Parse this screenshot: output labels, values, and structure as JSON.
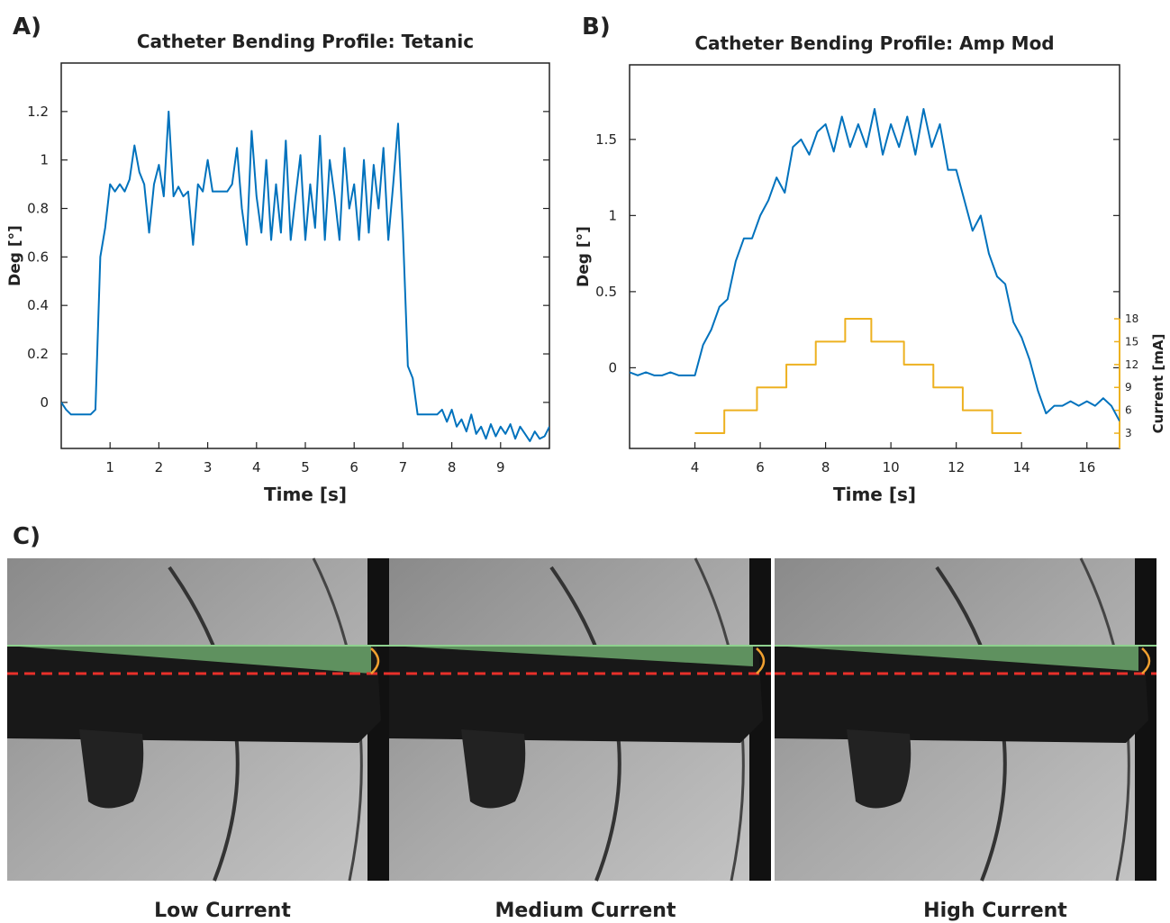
{
  "panel_labels": [
    "A)",
    "B)",
    "C)"
  ],
  "chart_data": [
    {
      "type": "line",
      "title": "Catheter Bending Profile: Tetanic",
      "xlabel": "Time [s]",
      "ylabel": "Deg [°]",
      "xlim": [
        0,
        10
      ],
      "ylim": [
        -0.19,
        1.4
      ],
      "xticks": [
        1,
        2,
        3,
        4,
        5,
        6,
        7,
        8,
        9
      ],
      "yticks": [
        0,
        0.2,
        0.4,
        0.6,
        0.8,
        1,
        1.2
      ],
      "x": [
        0,
        0.1,
        0.2,
        0.3,
        0.4,
        0.5,
        0.6,
        0.7,
        0.8,
        0.9,
        1,
        1.1,
        1.2,
        1.3,
        1.4,
        1.5,
        1.6,
        1.7,
        1.8,
        1.9,
        2,
        2.1,
        2.2,
        2.3,
        2.4,
        2.5,
        2.6,
        2.7,
        2.8,
        2.9,
        3,
        3.1,
        3.2,
        3.3,
        3.4,
        3.5,
        3.6,
        3.7,
        3.8,
        3.9,
        4,
        4.1,
        4.2,
        4.3,
        4.4,
        4.5,
        4.6,
        4.7,
        4.8,
        4.9,
        5,
        5.1,
        5.2,
        5.3,
        5.4,
        5.5,
        5.6,
        5.7,
        5.8,
        5.9,
        6,
        6.1,
        6.2,
        6.3,
        6.4,
        6.5,
        6.6,
        6.7,
        6.8,
        6.9,
        7,
        7.1,
        7.2,
        7.3,
        7.4,
        7.5,
        7.6,
        7.7,
        7.8,
        7.9,
        8,
        8.1,
        8.2,
        8.3,
        8.4,
        8.5,
        8.6,
        8.7,
        8.8,
        8.9,
        9,
        9.1,
        9.2,
        9.3,
        9.4,
        9.5,
        9.6,
        9.7,
        9.8,
        9.9,
        10
      ],
      "series": [
        {
          "color": "#0072BD",
          "values": [
            0,
            -0.03,
            -0.05,
            -0.05,
            -0.05,
            -0.05,
            -0.05,
            -0.03,
            0.6,
            0.72,
            0.9,
            0.87,
            0.9,
            0.87,
            0.92,
            1.06,
            0.95,
            0.9,
            0.7,
            0.9,
            0.98,
            0.85,
            1.2,
            0.85,
            0.89,
            0.85,
            0.87,
            0.65,
            0.9,
            0.87,
            1.0,
            0.87,
            0.87,
            0.87,
            0.87,
            0.9,
            1.05,
            0.8,
            0.65,
            1.12,
            0.85,
            0.7,
            1.0,
            0.67,
            0.9,
            0.7,
            1.08,
            0.67,
            0.85,
            1.02,
            0.67,
            0.9,
            0.72,
            1.1,
            0.67,
            1.0,
            0.85,
            0.67,
            1.05,
            0.8,
            0.9,
            0.67,
            1.0,
            0.7,
            0.98,
            0.8,
            1.05,
            0.67,
            0.9,
            1.15,
            0.7,
            0.15,
            0.1,
            -0.05,
            -0.05,
            -0.05,
            -0.05,
            -0.05,
            -0.03,
            -0.08,
            -0.03,
            -0.1,
            -0.07,
            -0.12,
            -0.05,
            -0.13,
            -0.1,
            -0.15,
            -0.09,
            -0.14,
            -0.1,
            -0.13,
            -0.09,
            -0.15,
            -0.1,
            -0.13,
            -0.16,
            -0.12,
            -0.15,
            -0.14,
            -0.1
          ]
        }
      ]
    },
    {
      "type": "line",
      "title": "Catheter Bending Profile: Amp Mod",
      "xlabel": "Time [s]",
      "ylabel": "Deg [°]",
      "y2label": "Current [mA]",
      "xlim": [
        2,
        17
      ],
      "ylim": [
        -0.53,
        1.99
      ],
      "y2lim": [
        1,
        51.3
      ],
      "xticks": [
        4,
        6,
        8,
        10,
        12,
        14,
        16
      ],
      "yticks": [
        0,
        0.5,
        1,
        1.5
      ],
      "y2ticks": [
        3,
        6,
        9,
        12,
        15,
        18
      ],
      "y2color": "#EDB120",
      "x": [
        2,
        2.25,
        2.5,
        2.75,
        3,
        3.25,
        3.5,
        3.75,
        4,
        4.25,
        4.5,
        4.75,
        5,
        5.25,
        5.5,
        5.75,
        6,
        6.25,
        6.5,
        6.75,
        7,
        7.25,
        7.5,
        7.75,
        8,
        8.25,
        8.5,
        8.75,
        9,
        9.25,
        9.5,
        9.75,
        10,
        10.25,
        10.5,
        10.75,
        11,
        11.25,
        11.5,
        11.75,
        12,
        12.25,
        12.5,
        12.75,
        13,
        13.25,
        13.5,
        13.75,
        14,
        14.25,
        14.5,
        14.75,
        15,
        15.25,
        15.5,
        15.75,
        16,
        16.25,
        16.5,
        16.75,
        17
      ],
      "series": [
        {
          "color": "#0072BD",
          "values": [
            -0.03,
            -0.05,
            -0.03,
            -0.05,
            -0.05,
            -0.03,
            -0.05,
            -0.05,
            -0.05,
            0.15,
            0.25,
            0.4,
            0.45,
            0.7,
            0.85,
            0.85,
            1.0,
            1.1,
            1.25,
            1.15,
            1.45,
            1.5,
            1.4,
            1.55,
            1.6,
            1.42,
            1.65,
            1.45,
            1.6,
            1.45,
            1.7,
            1.4,
            1.6,
            1.45,
            1.65,
            1.4,
            1.7,
            1.45,
            1.6,
            1.3,
            1.3,
            1.1,
            0.9,
            1.0,
            0.75,
            0.6,
            0.55,
            0.3,
            0.2,
            0.05,
            -0.15,
            -0.3,
            -0.25,
            -0.25,
            -0.22,
            -0.25,
            -0.22,
            -0.25,
            -0.2,
            -0.25,
            -0.35
          ]
        },
        {
          "color": "#EDB120",
          "axis": "y2",
          "x": [
            4,
            4.9,
            4.9,
            5.9,
            5.9,
            6.8,
            6.8,
            7.7,
            7.7,
            8.6,
            8.6,
            9.4,
            9.4,
            10.4,
            10.4,
            11.3,
            11.3,
            12.2,
            12.2,
            13.1,
            13.1,
            14
          ],
          "values": [
            3,
            3,
            6,
            6,
            9,
            9,
            12,
            12,
            15,
            15,
            18,
            18,
            15,
            15,
            12,
            12,
            9,
            9,
            6,
            6,
            3,
            3
          ]
        }
      ]
    }
  ],
  "photos": {
    "captions": [
      "Low Current",
      "Medium Current",
      "High Current"
    ]
  }
}
